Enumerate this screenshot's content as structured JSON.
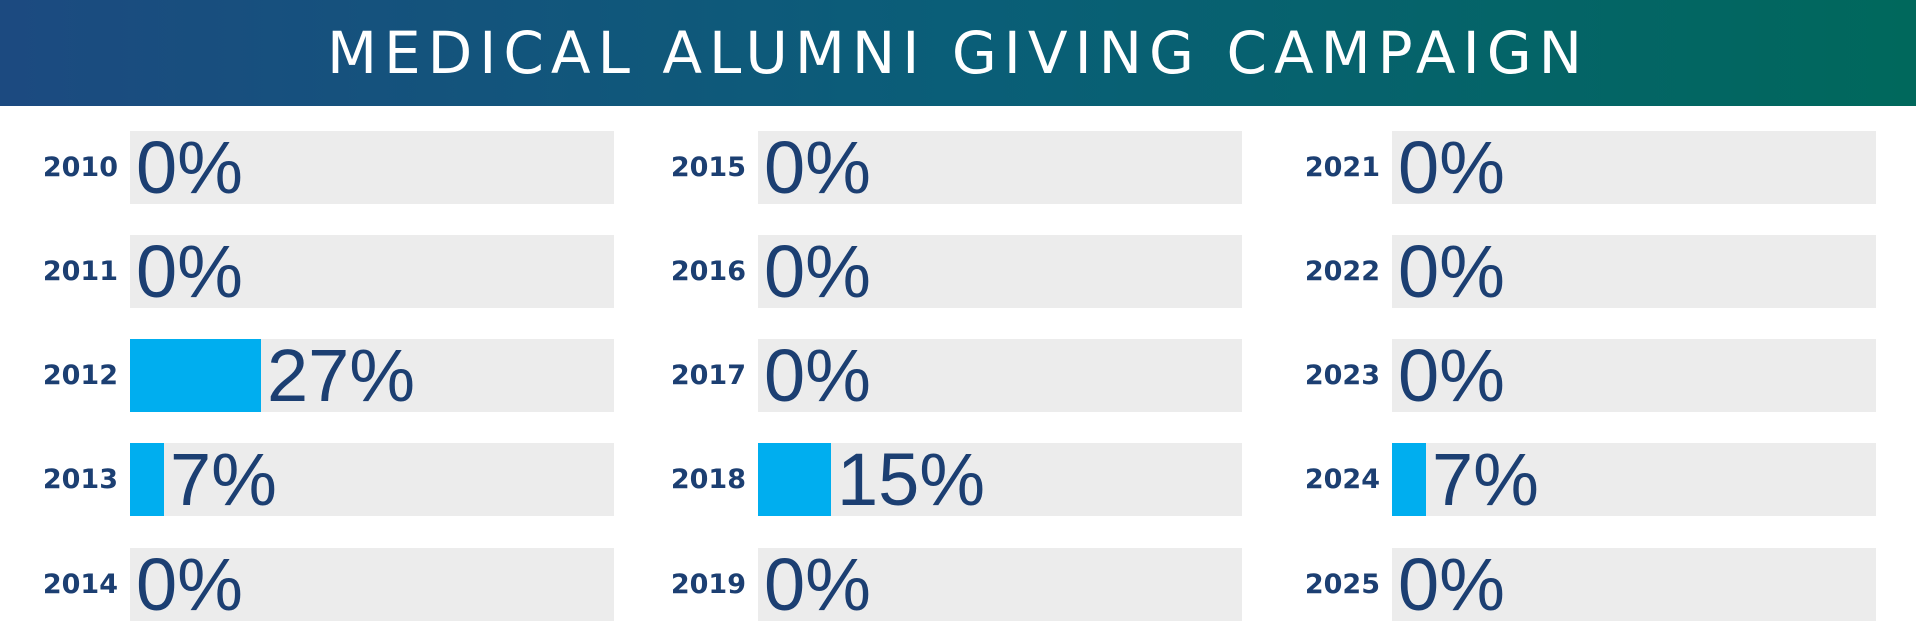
{
  "header": {
    "title": "MEDICAL ALUMNI GIVING CAMPAIGN"
  },
  "colors": {
    "bar": "#00aeef",
    "track": "#ececec",
    "text": "#1c3f72",
    "header_gradient": [
      "#1c4a80",
      "#0a5e78",
      "#00685c"
    ]
  },
  "chart_data": {
    "type": "bar",
    "orientation": "horizontal",
    "title": "MEDICAL ALUMNI GIVING CAMPAIGN",
    "xlim": [
      0,
      100
    ],
    "columns": [
      {
        "rows": [
          {
            "year": "2010",
            "value": 0,
            "label": "0%"
          },
          {
            "year": "2011",
            "value": 0,
            "label": "0%"
          },
          {
            "year": "2012",
            "value": 27,
            "label": "27%"
          },
          {
            "year": "2013",
            "value": 7,
            "label": "7%"
          },
          {
            "year": "2014",
            "value": 0,
            "label": "0%"
          }
        ]
      },
      {
        "rows": [
          {
            "year": "2015",
            "value": 0,
            "label": "0%"
          },
          {
            "year": "2016",
            "value": 0,
            "label": "0%"
          },
          {
            "year": "2017",
            "value": 0,
            "label": "0%"
          },
          {
            "year": "2018",
            "value": 15,
            "label": "15%"
          },
          {
            "year": "2019",
            "value": 0,
            "label": "0%"
          }
        ]
      },
      {
        "rows": [
          {
            "year": "2021",
            "value": 0,
            "label": "0%"
          },
          {
            "year": "2022",
            "value": 0,
            "label": "0%"
          },
          {
            "year": "2023",
            "value": 0,
            "label": "0%"
          },
          {
            "year": "2024",
            "value": 7,
            "label": "7%"
          },
          {
            "year": "2025",
            "value": 0,
            "label": "0%"
          }
        ]
      }
    ]
  }
}
